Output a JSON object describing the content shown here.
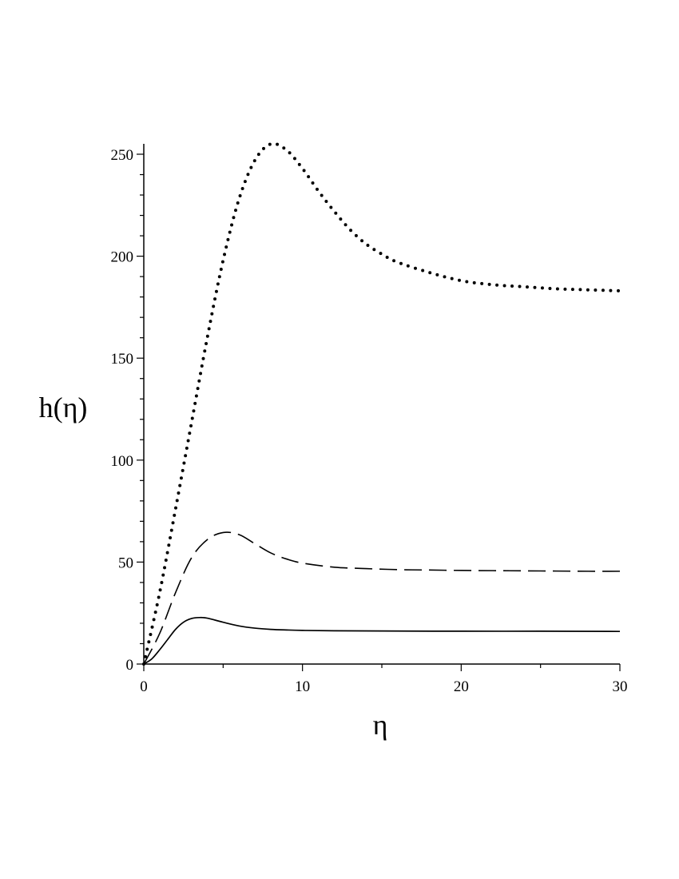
{
  "chart_data": {
    "type": "line",
    "xlabel": "η",
    "ylabel": "h(η)",
    "xlim": [
      0,
      30
    ],
    "ylim": [
      0,
      255
    ],
    "x_ticks": [
      0,
      10,
      20,
      30
    ],
    "y_ticks": [
      0,
      50,
      100,
      150,
      200,
      250
    ],
    "grid": false,
    "series": [
      {
        "style": "dotted",
        "x": [
          0,
          1,
          2,
          3,
          4,
          5,
          6,
          7,
          8,
          9,
          10,
          11,
          12,
          13,
          14,
          15,
          16,
          18,
          20,
          22,
          24,
          26,
          28,
          30
        ],
        "y": [
          0,
          35,
          76,
          118,
          160,
          198,
          228,
          247,
          255,
          252,
          243,
          232,
          222,
          213,
          206,
          201,
          197,
          192,
          188,
          186,
          185,
          184,
          183.5,
          183
        ]
      },
      {
        "style": "dashed",
        "x": [
          0,
          1,
          2,
          3,
          4,
          5,
          6,
          7,
          8,
          9,
          10,
          12,
          14,
          16,
          18,
          20,
          22,
          24,
          26,
          28,
          30
        ],
        "y": [
          0,
          15,
          35,
          52,
          61,
          64.5,
          63.5,
          59,
          54.5,
          51.5,
          49.5,
          47.5,
          46.8,
          46.3,
          46.1,
          45.9,
          45.8,
          45.7,
          45.6,
          45.5,
          45.5
        ]
      },
      {
        "style": "solid",
        "x": [
          0,
          0.5,
          1,
          1.5,
          2,
          2.5,
          3,
          3.5,
          4,
          5,
          6,
          7,
          8,
          9,
          10,
          12,
          15,
          20,
          25,
          30
        ],
        "y": [
          0,
          2.5,
          7,
          12,
          17,
          20.5,
          22.3,
          22.8,
          22.5,
          20.5,
          18.7,
          17.6,
          17,
          16.7,
          16.5,
          16.3,
          16.2,
          16.1,
          16.1,
          16
        ]
      }
    ]
  }
}
